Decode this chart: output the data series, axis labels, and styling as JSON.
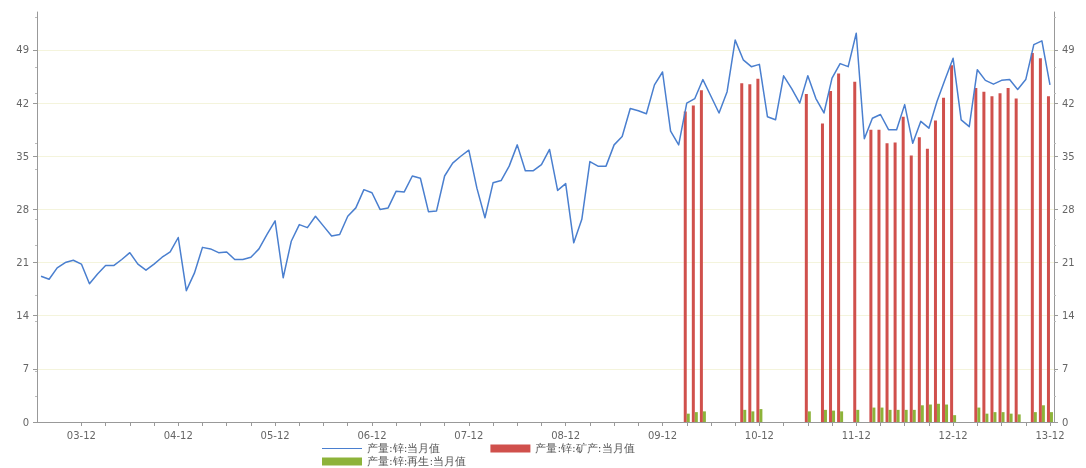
{
  "chart_data": {
    "type": "bar",
    "categories": [
      null,
      null,
      null,
      null,
      null,
      "03-12",
      null,
      null,
      null,
      null,
      null,
      null,
      null,
      null,
      null,
      null,
      null,
      "04-12",
      null,
      null,
      null,
      null,
      null,
      null,
      null,
      null,
      null,
      null,
      null,
      "05-12",
      null,
      null,
      null,
      null,
      null,
      null,
      null,
      null,
      null,
      null,
      null,
      "06-12",
      null,
      null,
      null,
      null,
      null,
      null,
      null,
      null,
      null,
      null,
      null,
      "07-12",
      null,
      null,
      null,
      null,
      null,
      null,
      null,
      null,
      null,
      null,
      null,
      "08-12",
      null,
      null,
      null,
      null,
      null,
      null,
      null,
      null,
      null,
      null,
      null,
      "09-12",
      null,
      null,
      null,
      null,
      null,
      null,
      null,
      null,
      null,
      null,
      null,
      "10-12",
      null,
      null,
      null,
      null,
      null,
      null,
      null,
      null,
      null,
      null,
      null,
      "11-12",
      null,
      null,
      null,
      null,
      null,
      null,
      null,
      null,
      null,
      null,
      null,
      "12-12",
      null,
      null,
      null,
      null,
      null,
      null,
      null,
      null,
      null,
      null,
      null,
      "13-12"
    ],
    "series": [
      {
        "name": "产量:锌:当月值",
        "type": "line",
        "color": "#4a7fcf",
        "values": [
          19.2,
          18.8,
          20.3,
          21.0,
          21.3,
          20.8,
          18.2,
          19.5,
          20.6,
          20.6,
          21.4,
          22.3,
          20.8,
          20.0,
          20.8,
          21.7,
          22.4,
          24.3,
          17.3,
          19.6,
          23.0,
          22.8,
          22.3,
          22.4,
          21.4,
          21.4,
          21.7,
          22.8,
          24.7,
          26.5,
          19.0,
          23.8,
          26.0,
          25.6,
          27.1,
          25.8,
          24.5,
          24.7,
          27.1,
          28.2,
          30.6,
          30.2,
          28.0,
          28.2,
          30.4,
          30.3,
          32.4,
          32.1,
          27.7,
          27.8,
          32.4,
          34.1,
          35.0,
          35.8,
          30.8,
          26.9,
          31.5,
          31.8,
          33.7,
          36.5,
          33.1,
          33.1,
          33.9,
          35.9,
          30.5,
          31.4,
          23.6,
          26.7,
          34.3,
          33.7,
          33.7,
          36.5,
          37.6,
          41.3,
          41.0,
          40.6,
          44.4,
          46.1,
          38.3,
          36.5,
          42.0,
          42.6,
          45.1,
          42.9,
          40.7,
          43.5,
          50.3,
          47.7,
          46.8,
          47.1,
          40.2,
          39.8,
          45.6,
          43.9,
          42.0,
          45.6,
          42.6,
          40.7,
          45.3,
          47.2,
          46.8,
          51.2,
          37.3,
          40.0,
          40.5,
          38.5,
          38.5,
          41.8,
          36.7,
          39.6,
          38.7,
          42.2,
          45.1,
          47.9,
          39.8,
          38.9,
          46.4,
          45.0,
          44.5,
          45.0,
          45.1,
          43.8,
          45.1,
          49.7,
          50.2,
          44.4
        ]
      },
      {
        "name": "产量:锌:矿产:当月值",
        "type": "bar",
        "color": "#d0504c",
        "values": [
          null,
          null,
          null,
          null,
          null,
          null,
          null,
          null,
          null,
          null,
          null,
          null,
          null,
          null,
          null,
          null,
          null,
          null,
          null,
          null,
          null,
          null,
          null,
          null,
          null,
          null,
          null,
          null,
          null,
          null,
          null,
          null,
          null,
          null,
          null,
          null,
          null,
          null,
          null,
          null,
          null,
          null,
          null,
          null,
          null,
          null,
          null,
          null,
          null,
          null,
          null,
          null,
          null,
          null,
          null,
          null,
          null,
          null,
          null,
          null,
          null,
          null,
          null,
          null,
          null,
          null,
          null,
          null,
          null,
          null,
          null,
          null,
          null,
          null,
          null,
          null,
          null,
          null,
          null,
          null,
          40.9,
          41.7,
          43.7,
          null,
          null,
          null,
          null,
          44.6,
          44.5,
          45.2,
          null,
          null,
          null,
          null,
          null,
          43.2,
          null,
          39.3,
          43.6,
          45.9,
          null,
          44.8,
          null,
          38.5,
          38.5,
          36.7,
          36.8,
          40.2,
          35.1,
          37.5,
          36.0,
          39.7,
          42.7,
          47.0,
          null,
          null,
          44.0,
          43.5,
          42.9,
          43.3,
          44.0,
          42.6,
          null,
          48.6,
          47.9,
          42.9
        ]
      },
      {
        "name": "产量:锌:再生:当月值",
        "type": "bar",
        "color": "#8db33a",
        "values": [
          null,
          null,
          null,
          null,
          null,
          null,
          null,
          null,
          null,
          null,
          null,
          null,
          null,
          null,
          null,
          null,
          null,
          null,
          null,
          null,
          null,
          null,
          null,
          null,
          null,
          null,
          null,
          null,
          null,
          null,
          null,
          null,
          null,
          null,
          null,
          null,
          null,
          null,
          null,
          null,
          null,
          null,
          null,
          null,
          null,
          null,
          null,
          null,
          null,
          null,
          null,
          null,
          null,
          null,
          null,
          null,
          null,
          null,
          null,
          null,
          null,
          null,
          null,
          null,
          null,
          null,
          null,
          null,
          null,
          null,
          null,
          null,
          null,
          null,
          null,
          null,
          null,
          null,
          null,
          null,
          1.1,
          1.3,
          1.4,
          null,
          null,
          null,
          null,
          1.6,
          1.4,
          1.7,
          null,
          null,
          null,
          null,
          null,
          1.4,
          null,
          1.6,
          1.5,
          1.4,
          null,
          1.6,
          null,
          1.9,
          1.9,
          1.6,
          1.6,
          1.6,
          1.6,
          2.2,
          2.3,
          2.4,
          2.3,
          0.9,
          null,
          null,
          1.9,
          1.1,
          1.3,
          1.3,
          1.1,
          1.0,
          null,
          1.3,
          2.2,
          1.3
        ]
      }
    ],
    "ylim": [
      0,
      54
    ],
    "yticks": [
      0,
      7,
      14,
      21,
      28,
      35,
      42,
      49
    ],
    "y2lim": [
      0,
      54
    ],
    "y2ticks": [
      0,
      7,
      14,
      21,
      28,
      35,
      42,
      49
    ],
    "grid": "y",
    "legend": "bottom",
    "marker": "none"
  }
}
